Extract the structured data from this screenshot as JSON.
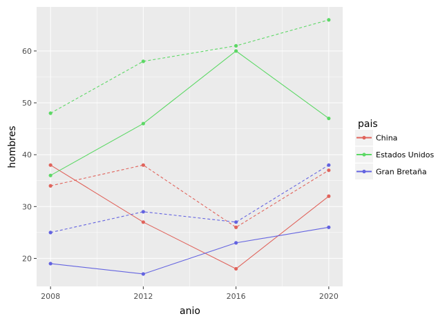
{
  "chart_data": {
    "type": "line",
    "title": "",
    "xlabel": "anio",
    "ylabel": "hombres",
    "x": [
      2008,
      2012,
      2016,
      2020
    ],
    "x_ticks": [
      "2008",
      "2012",
      "2016",
      "2020"
    ],
    "xlim": [
      2007.4,
      2020.6
    ],
    "ylim": [
      14.6,
      68.5
    ],
    "y_ticks": [
      20,
      30,
      40,
      50,
      60
    ],
    "grid": true,
    "legend": {
      "title": "pais",
      "placement": "right",
      "entries": [
        "China",
        "Estados Unidos",
        "Gran Bretaña"
      ]
    },
    "series": [
      {
        "name": "China",
        "color": "#E0635B",
        "linestyle": "solid",
        "values": [
          38,
          27,
          18,
          32
        ]
      },
      {
        "name": "China",
        "color": "#E0635B",
        "linestyle": "dashed",
        "values": [
          34,
          38,
          26,
          37
        ]
      },
      {
        "name": "Estados Unidos",
        "color": "#5CD865",
        "linestyle": "solid",
        "values": [
          36,
          46,
          60,
          47
        ]
      },
      {
        "name": "Estados Unidos",
        "color": "#5CD865",
        "linestyle": "dashed",
        "values": [
          48,
          58,
          61,
          66
        ]
      },
      {
        "name": "Gran Bretaña",
        "color": "#6363E0",
        "linestyle": "solid",
        "values": [
          19,
          17,
          23,
          26
        ]
      },
      {
        "name": "Gran Bretaña",
        "color": "#6363E0",
        "linestyle": "dashed",
        "values": [
          25,
          29,
          27,
          38
        ]
      }
    ]
  }
}
